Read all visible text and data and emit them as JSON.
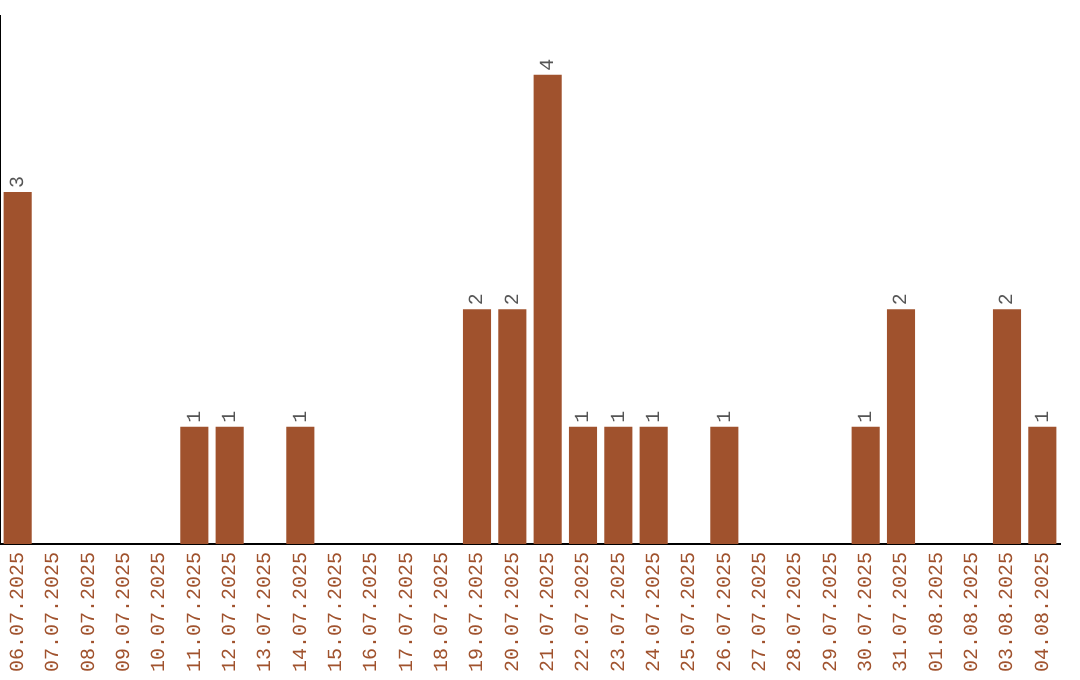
{
  "chart_data": {
    "type": "bar",
    "categories": [
      "06.07.2025",
      "07.07.2025",
      "08.07.2025",
      "09.07.2025",
      "10.07.2025",
      "11.07.2025",
      "12.07.2025",
      "13.07.2025",
      "14.07.2025",
      "15.07.2025",
      "16.07.2025",
      "17.07.2025",
      "18.07.2025",
      "19.07.2025",
      "20.07.2025",
      "21.07.2025",
      "22.07.2025",
      "23.07.2025",
      "24.07.2025",
      "25.07.2025",
      "26.07.2025",
      "27.07.2025",
      "28.07.2025",
      "29.07.2025",
      "30.07.2025",
      "31.07.2025",
      "01.08.2025",
      "02.08.2025",
      "03.08.2025",
      "04.08.2025"
    ],
    "values": [
      3,
      0,
      0,
      0,
      0,
      1,
      1,
      0,
      1,
      0,
      0,
      0,
      0,
      2,
      2,
      4,
      1,
      1,
      1,
      0,
      1,
      0,
      0,
      0,
      1,
      2,
      0,
      0,
      2,
      1
    ],
    "value_labels": [
      "3",
      null,
      null,
      null,
      null,
      "1",
      "1",
      null,
      "1",
      null,
      null,
      null,
      null,
      "2",
      "2",
      "4",
      "1",
      "1",
      "1",
      null,
      "1",
      null,
      null,
      null,
      "1",
      "2",
      null,
      null,
      "2",
      "1"
    ],
    "color": "#a0522d",
    "grid": false,
    "legend": false,
    "tick_labels": "x"
  }
}
